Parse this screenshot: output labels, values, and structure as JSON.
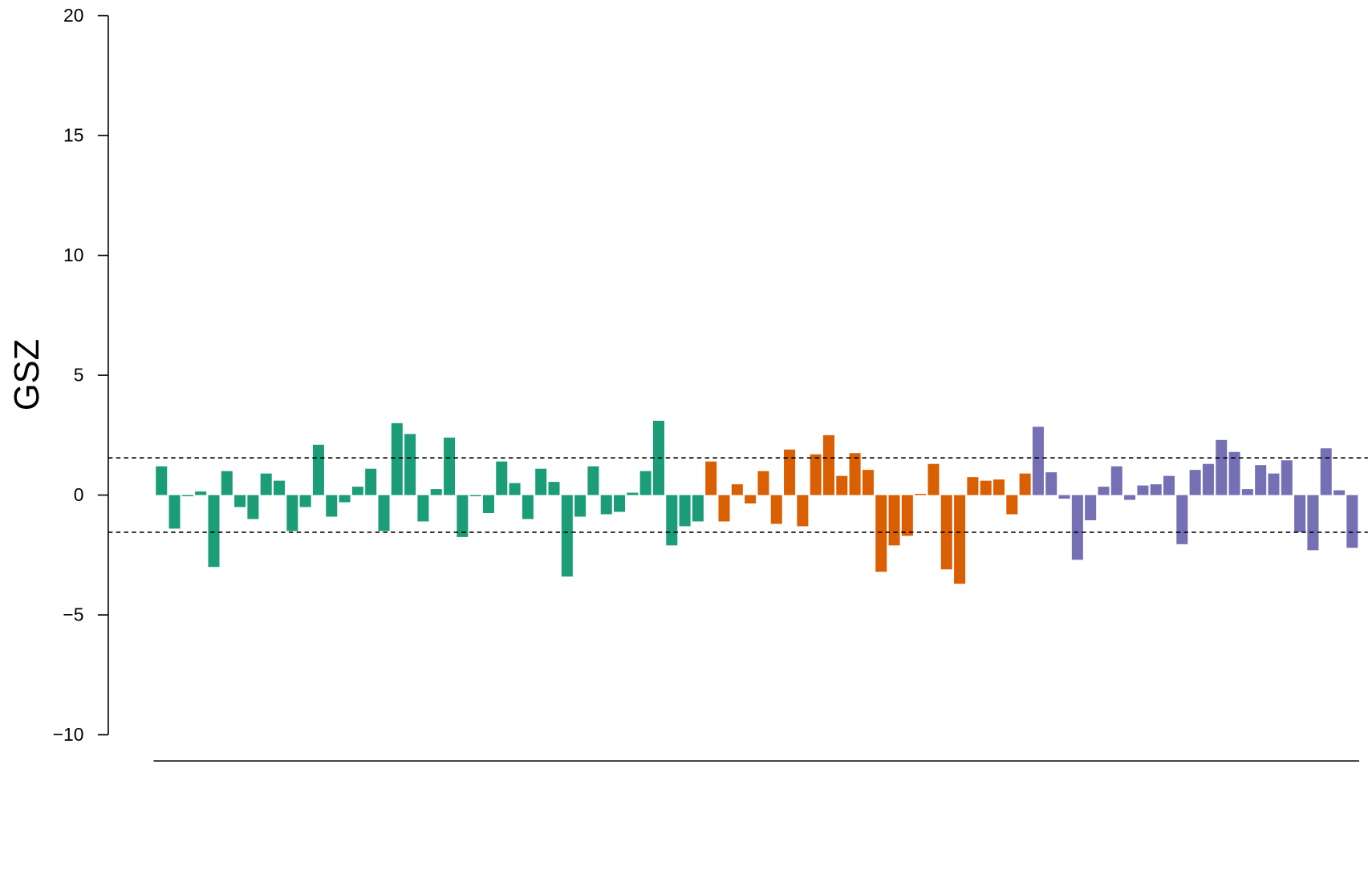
{
  "chart_data": {
    "type": "bar",
    "y_label": "GSZ",
    "ylim": [
      -10,
      20
    ],
    "yticks": [
      {
        "value": -10,
        "label": "−10"
      },
      {
        "value": -5,
        "label": "−5"
      },
      0,
      5,
      10,
      15,
      20
    ],
    "reference_lines": [
      1.55,
      -1.55
    ],
    "categories": [
      null,
      null,
      null,
      null,
      null,
      null,
      null,
      null,
      null,
      null,
      null,
      null,
      null,
      null,
      null,
      null,
      null,
      null,
      null,
      null,
      null,
      null,
      null,
      null,
      null,
      null,
      null,
      null,
      null,
      null,
      null,
      null,
      null,
      null,
      null,
      null,
      null,
      null,
      null,
      null,
      null,
      null,
      null,
      null,
      null,
      null,
      null,
      null,
      null,
      null,
      null,
      null,
      null,
      null,
      null,
      null,
      null,
      null,
      null,
      null,
      null,
      null,
      null,
      null,
      null,
      null,
      null,
      null,
      null,
      null,
      null,
      null,
      null,
      null,
      null,
      null,
      null,
      null,
      null,
      null,
      null,
      null,
      null,
      null,
      null,
      null,
      null,
      null,
      null,
      null,
      null,
      null
    ],
    "values": [
      1.2,
      -1.4,
      -0.05,
      0.15,
      -3.0,
      1.0,
      -0.5,
      -1.0,
      0.9,
      0.6,
      -1.5,
      -0.5,
      2.1,
      -0.9,
      -0.3,
      0.35,
      1.1,
      -1.5,
      3.0,
      2.55,
      -1.1,
      0.25,
      2.4,
      -1.75,
      -0.05,
      -0.75,
      1.4,
      0.5,
      -1.0,
      1.1,
      0.55,
      -3.4,
      -0.9,
      1.2,
      -0.8,
      -0.7,
      0.1,
      1.0,
      3.1,
      -2.1,
      -1.3,
      -1.1,
      1.4,
      -1.1,
      0.45,
      -0.35,
      1.0,
      -1.2,
      1.9,
      -1.3,
      1.7,
      2.5,
      0.8,
      1.75,
      1.05,
      -3.2,
      -2.1,
      -1.7,
      0.05,
      1.3,
      -3.1,
      -3.7,
      0.75,
      0.6,
      0.65,
      -0.8,
      0.9,
      2.85,
      0.95,
      -0.15,
      -2.7,
      -1.05,
      0.35,
      1.2,
      -0.2,
      0.4,
      0.45,
      0.8,
      -2.05,
      1.05,
      1.3,
      2.3,
      1.8,
      0.25,
      1.25,
      0.9,
      1.45,
      -1.55,
      -2.3,
      1.95,
      0.2,
      -2.2
    ],
    "colors": [
      "#1b9e77",
      "#1b9e77",
      "#1b9e77",
      "#1b9e77",
      "#1b9e77",
      "#1b9e77",
      "#1b9e77",
      "#1b9e77",
      "#1b9e77",
      "#1b9e77",
      "#1b9e77",
      "#1b9e77",
      "#1b9e77",
      "#1b9e77",
      "#1b9e77",
      "#1b9e77",
      "#1b9e77",
      "#1b9e77",
      "#1b9e77",
      "#1b9e77",
      "#1b9e77",
      "#1b9e77",
      "#1b9e77",
      "#1b9e77",
      "#1b9e77",
      "#1b9e77",
      "#1b9e77",
      "#1b9e77",
      "#1b9e77",
      "#1b9e77",
      "#1b9e77",
      "#1b9e77",
      "#1b9e77",
      "#1b9e77",
      "#1b9e77",
      "#1b9e77",
      "#1b9e77",
      "#1b9e77",
      "#1b9e77",
      "#1b9e77",
      "#1b9e77",
      "#1b9e77",
      "#d95f02",
      "#d95f02",
      "#d95f02",
      "#d95f02",
      "#d95f02",
      "#d95f02",
      "#d95f02",
      "#d95f02",
      "#d95f02",
      "#d95f02",
      "#d95f02",
      "#d95f02",
      "#d95f02",
      "#d95f02",
      "#d95f02",
      "#d95f02",
      "#d95f02",
      "#d95f02",
      "#d95f02",
      "#d95f02",
      "#d95f02",
      "#d95f02",
      "#d95f02",
      "#d95f02",
      "#d95f02",
      "#7570b3",
      "#7570b3",
      "#7570b3",
      "#7570b3",
      "#7570b3",
      "#7570b3",
      "#7570b3",
      "#7570b3",
      "#7570b3",
      "#7570b3",
      "#7570b3",
      "#7570b3",
      "#7570b3",
      "#7570b3",
      "#7570b3",
      "#7570b3",
      "#7570b3",
      "#7570b3",
      "#7570b3",
      "#7570b3",
      "#7570b3",
      "#7570b3",
      "#7570b3",
      "#7570b3",
      "#7570b3"
    ]
  }
}
